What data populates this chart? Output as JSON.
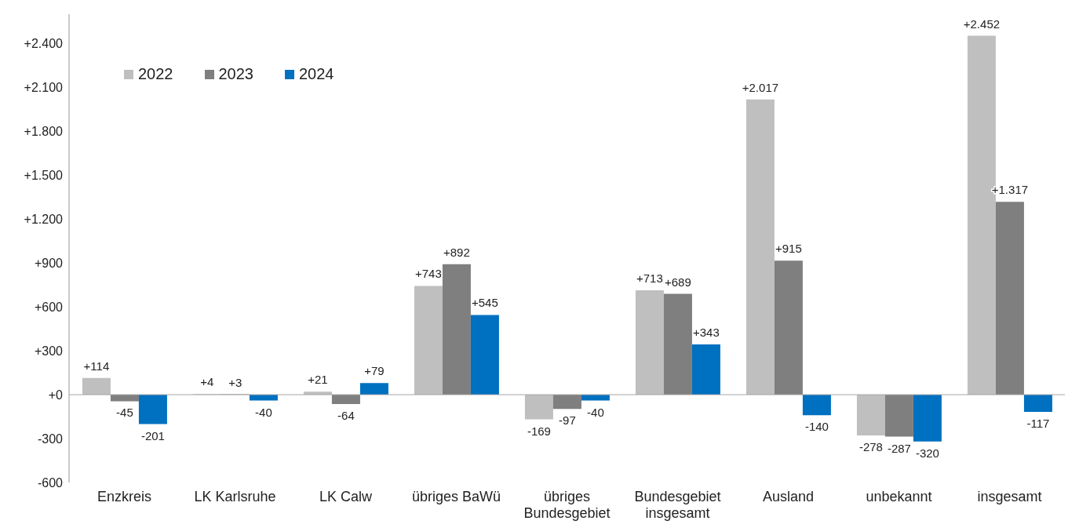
{
  "chart_data": {
    "type": "bar",
    "categories": [
      "Enzkreis",
      "LK Karlsruhe",
      "LK Calw",
      "übriges BaWü",
      "übriges Bundesgebiet",
      "Bundesgebiet insgesamt",
      "Ausland",
      "unbekannt",
      "insgesamt"
    ],
    "series": [
      {
        "name": "2022",
        "color": "#bfbfbf",
        "values": [
          114,
          4,
          21,
          743,
          -169,
          713,
          2017,
          -278,
          2452
        ],
        "value_labels": [
          "+114",
          "+4",
          "+21",
          "+743",
          "-169",
          "+713",
          "+2.017",
          "-278",
          "+2.452"
        ]
      },
      {
        "name": "2023",
        "color": "#7f7f7f",
        "values": [
          -45,
          3,
          -64,
          892,
          -97,
          689,
          915,
          -287,
          1317
        ],
        "value_labels": [
          "-45",
          "+3",
          "-64",
          "+892",
          "-97",
          "+689",
          "+915",
          "-287",
          "+1.317"
        ]
      },
      {
        "name": "2024",
        "color": "#0070c0",
        "values": [
          -201,
          -40,
          79,
          545,
          -40,
          343,
          -140,
          -320,
          -117
        ],
        "value_labels": [
          "-201",
          "-40",
          "+79",
          "+545",
          "-40",
          "+343",
          "-140",
          "-320",
          "-117"
        ]
      }
    ],
    "ylim": [
      -600,
      2600
    ],
    "yticks": [
      {
        "value": -600,
        "label": "-600"
      },
      {
        "value": -300,
        "label": "-300"
      },
      {
        "value": 0,
        "label": "+0"
      },
      {
        "value": 300,
        "label": "+300"
      },
      {
        "value": 600,
        "label": "+600"
      },
      {
        "value": 900,
        "label": "+900"
      },
      {
        "value": 1200,
        "label": "+1.200"
      },
      {
        "value": 1500,
        "label": "+1.500"
      },
      {
        "value": 1800,
        "label": "+1.800"
      },
      {
        "value": 2100,
        "label": "+2.100"
      },
      {
        "value": 2400,
        "label": "+2.400"
      }
    ],
    "grid": false,
    "ref_lines": [
      {
        "axis": "y",
        "value": 0,
        "color": "#a6a6a6"
      }
    ],
    "legend": "top left"
  }
}
